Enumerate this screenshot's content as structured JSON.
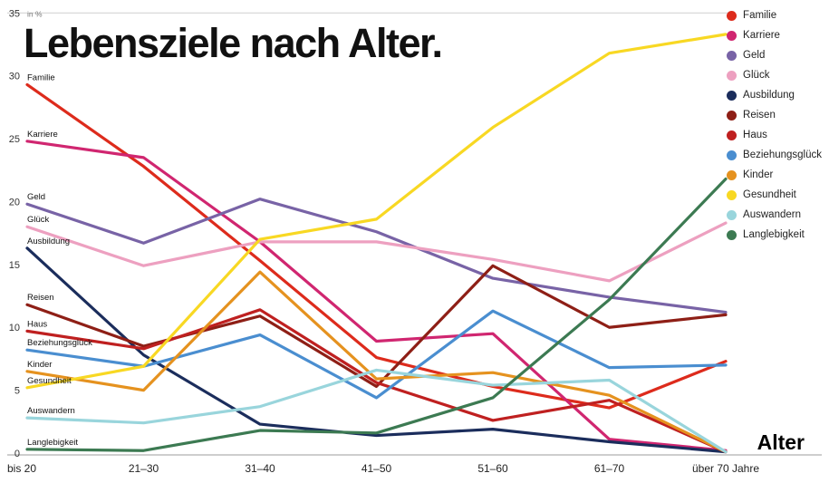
{
  "title": "Lebensziele nach Alter.",
  "chart_data": {
    "type": "line",
    "title": "Lebensziele nach Alter.",
    "xlabel": "Alter",
    "ylabel": "in %",
    "ylim": [
      0,
      35
    ],
    "y_ticks": [
      0,
      5,
      10,
      15,
      20,
      25,
      30,
      35
    ],
    "grid": false,
    "legend_position": "top-right",
    "direct_series_labels": true,
    "categories": [
      "bis 20",
      "21–30",
      "31–40",
      "41–50",
      "51–60",
      "61–70",
      "über 70 Jahre"
    ],
    "series": [
      {
        "name": "Familie",
        "color": "#dd2b1c",
        "values": [
          29.3,
          22.8,
          15.3,
          7.6,
          5.3,
          3.6,
          7.3
        ]
      },
      {
        "name": "Karriere",
        "color": "#d02670",
        "values": [
          24.8,
          23.5,
          16.8,
          8.9,
          9.5,
          1.1,
          0.2
        ]
      },
      {
        "name": "Geld",
        "color": "#7863a6",
        "values": [
          19.8,
          16.7,
          20.2,
          17.6,
          13.9,
          12.4,
          11.2
        ]
      },
      {
        "name": "Glück",
        "color": "#eda0c0",
        "values": [
          18.0,
          14.9,
          16.8,
          16.8,
          15.4,
          13.7,
          18.3
        ]
      },
      {
        "name": "Ausbildung",
        "color": "#1b2d5c",
        "values": [
          16.3,
          7.8,
          2.3,
          1.4,
          1.9,
          0.9,
          0.1
        ]
      },
      {
        "name": "Reisen",
        "color": "#8e1f16",
        "values": [
          11.8,
          8.5,
          10.9,
          5.3,
          14.9,
          10.0,
          11.0
        ]
      },
      {
        "name": "Haus",
        "color": "#bf2020",
        "values": [
          9.7,
          8.3,
          11.4,
          5.6,
          2.6,
          4.2,
          0.1
        ]
      },
      {
        "name": "Beziehungsglück",
        "color": "#4a8ed0",
        "values": [
          8.2,
          6.9,
          9.4,
          4.4,
          11.3,
          6.8,
          7.0
        ]
      },
      {
        "name": "Kinder",
        "color": "#e5921f",
        "values": [
          6.5,
          5.0,
          14.4,
          5.9,
          6.4,
          4.6,
          0.1
        ]
      },
      {
        "name": "Gesundheit",
        "color": "#f8d823",
        "values": [
          5.2,
          6.9,
          17.0,
          18.6,
          25.9,
          31.8,
          33.3
        ]
      },
      {
        "name": "Auswandern",
        "color": "#99d5dc",
        "values": [
          2.8,
          2.4,
          3.7,
          6.6,
          5.4,
          5.8,
          0.1
        ]
      },
      {
        "name": "Langlebigkeit",
        "color": "#3c7a52",
        "values": [
          0.3,
          0.2,
          1.8,
          1.6,
          4.4,
          12.2,
          21.8
        ]
      }
    ]
  }
}
